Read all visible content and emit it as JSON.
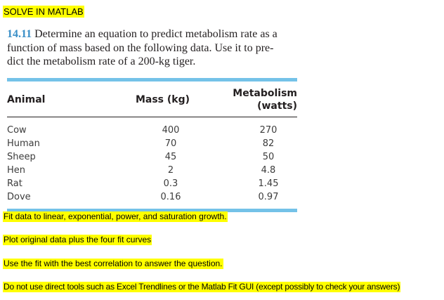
{
  "heading": "SOLVE IN MATLAB",
  "problem": {
    "number": "14.11",
    "line1": "Determine an equation to predict metabolism rate as a",
    "line2": "function of mass based on the following data. Use it to pre-",
    "line3": "dict the metabolism rate of a 200-kg tiger."
  },
  "table": {
    "headers": [
      "Animal",
      "Mass (kg)",
      "Metabolism (watts)"
    ],
    "rows": [
      [
        "Cow",
        "400",
        "270"
      ],
      [
        "Human",
        "70",
        "82"
      ],
      [
        "Sheep",
        "45",
        "50"
      ],
      [
        "Hen",
        "2",
        "4.8"
      ],
      [
        "Rat",
        "0.3",
        "1.45"
      ],
      [
        "Dove",
        "0.16",
        "0.97"
      ]
    ]
  },
  "instructions": [
    "Fit data to linear, exponential, power, and saturation growth.",
    "Plot original data plus the four fit curves",
    "Use the fit with the best correlation to answer the question.",
    "Do not use direct tools such as Excel Trendlines or the Matlab Fit GUI (except possibly to check your answers)"
  ],
  "colors": {
    "highlight": "#ffff00",
    "table_rule": "#74c2e8",
    "problem_number": "#3a8fc7"
  }
}
